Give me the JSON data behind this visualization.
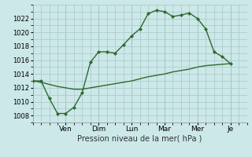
{
  "background_color": "#cce8e8",
  "grid_color": "#a8c8c8",
  "line_color": "#2d6a2d",
  "title": "Pression niveau de la mer( hPa )",
  "ylim": [
    1007,
    1024
  ],
  "yticks": [
    1008,
    1010,
    1012,
    1014,
    1016,
    1018,
    1020,
    1022
  ],
  "day_labels": [
    "Ven",
    "Dim",
    "Lun",
    "Mar",
    "Mer",
    "Je"
  ],
  "day_positions": [
    2,
    4,
    6,
    8,
    10,
    12
  ],
  "xlim": [
    0,
    13
  ],
  "series1_x": [
    0.0,
    0.5,
    1.0,
    1.5,
    2.0,
    2.5,
    3.0,
    3.5,
    4.0,
    4.5,
    5.0,
    5.5,
    6.0,
    6.5,
    7.0,
    7.5,
    8.0,
    8.5,
    9.0,
    9.5,
    10.0,
    10.5,
    11.0,
    11.5,
    12.0
  ],
  "series1_y": [
    1013.0,
    1013.0,
    1010.5,
    1008.3,
    1008.3,
    1009.2,
    1011.3,
    1015.7,
    1017.2,
    1017.2,
    1017.0,
    1018.2,
    1019.5,
    1020.5,
    1022.7,
    1023.2,
    1023.0,
    1022.3,
    1022.5,
    1022.8,
    1022.0,
    1020.5,
    1017.2,
    1016.5,
    1015.5
  ],
  "series2_x": [
    0.0,
    0.5,
    1.0,
    1.5,
    2.0,
    2.5,
    3.0,
    3.5,
    4.0,
    4.5,
    5.0,
    5.5,
    6.0,
    6.5,
    7.0,
    7.5,
    8.0,
    8.5,
    9.0,
    9.5,
    10.0,
    10.5,
    11.0,
    11.5,
    12.0
  ],
  "series2_y": [
    1013.0,
    1012.8,
    1012.5,
    1012.2,
    1012.0,
    1011.8,
    1011.8,
    1012.0,
    1012.2,
    1012.4,
    1012.6,
    1012.8,
    1013.0,
    1013.3,
    1013.6,
    1013.8,
    1014.0,
    1014.3,
    1014.5,
    1014.7,
    1015.0,
    1015.2,
    1015.3,
    1015.4,
    1015.5
  ]
}
